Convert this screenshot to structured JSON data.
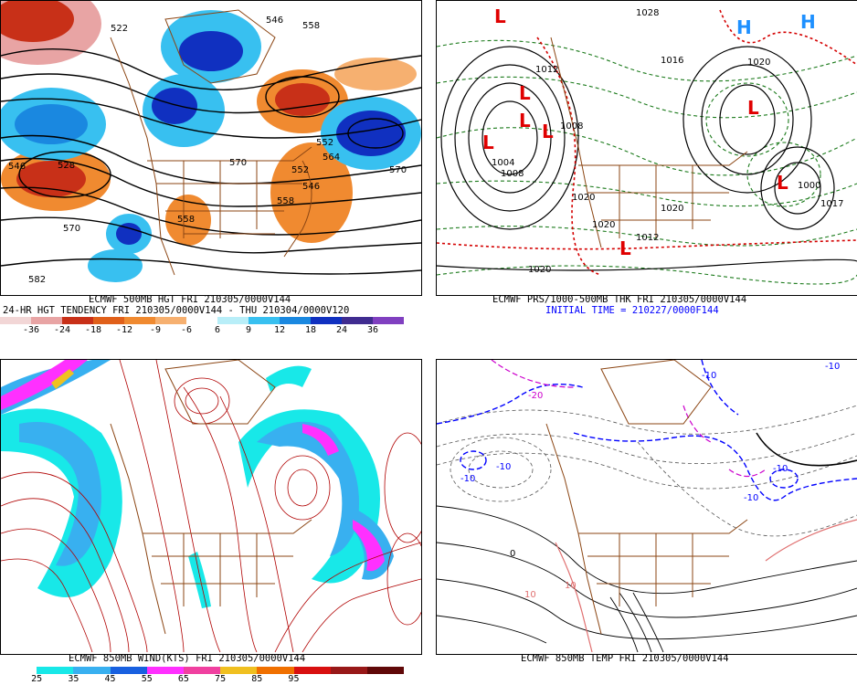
{
  "panels": {
    "tl": {
      "caption1": "ECMWF 500MB HGT FRI 210305/0000V144",
      "caption2": "24-HR HGT TENDENCY FRI 210305/0000V144 - THU 210304/0000V120",
      "colorbar": {
        "labels": [
          "-36",
          "-24",
          "-18",
          "-12",
          "-9",
          "-6",
          "6",
          "9",
          "12",
          "18",
          "24",
          "36"
        ],
        "colors": [
          "#f2d6d6",
          "#e8a4a4",
          "#c83018",
          "#e0601a",
          "#f08a30",
          "#f6b070",
          "#ffffff",
          "#b8eef8",
          "#38c0f0",
          "#1a88e0",
          "#1030c0",
          "#402c90",
          "#8040c0"
        ]
      },
      "contour_labels": [
        "522",
        "546",
        "558",
        "528",
        "552",
        "564",
        "546",
        "558",
        "570",
        "546",
        "552",
        "570",
        "558",
        "570",
        "582"
      ]
    },
    "tr": {
      "caption1": "ECMWF PRS/1000-500MB THK FRI 210305/0000V144",
      "caption2": "INITIAL TIME = 210227/0000F144",
      "pressure_labels": [
        "1020",
        "1004",
        "1008",
        "1020",
        "1012",
        "1020",
        "1020",
        "1028",
        "1012",
        "1016",
        "1008",
        "1017",
        "1020",
        "1000"
      ],
      "highs": [
        "H",
        "H"
      ],
      "lows": [
        "L",
        "L",
        "L",
        "L",
        "L",
        "L",
        "L",
        "L"
      ]
    },
    "bl": {
      "caption1": "ECMWF 850MB WIND(KTS) FRI 210305/0000V144",
      "colorbar": {
        "labels": [
          "25",
          "35",
          "45",
          "55",
          "65",
          "75",
          "85",
          "95"
        ],
        "colors": [
          "#ffffff",
          "#18e8e8",
          "#38b0f0",
          "#1860e0",
          "#ff30ff",
          "#f040a0",
          "#f0c020",
          "#f07000",
          "#d81010",
          "#981818",
          "#600808"
        ]
      }
    },
    "br": {
      "caption1": "ECMWF 850MB TEMP FRI 210305/0000V144",
      "contour_labels": [
        "-10",
        "-10",
        "-10",
        "-10",
        "-10",
        "-10",
        "-20",
        "10",
        "0",
        "10"
      ]
    }
  },
  "colors": {
    "border": "#8b4513",
    "positive_contour": "#000000",
    "thickness": "#d40000",
    "pressure": "#1b7a1b",
    "freezing_line": "#0000ff",
    "cold_line": "#cc00cc",
    "warm_line": "#e07070",
    "wind_streamline": "#b00000",
    "high_marker": "#1e90ff",
    "low_marker": "#e00000"
  }
}
